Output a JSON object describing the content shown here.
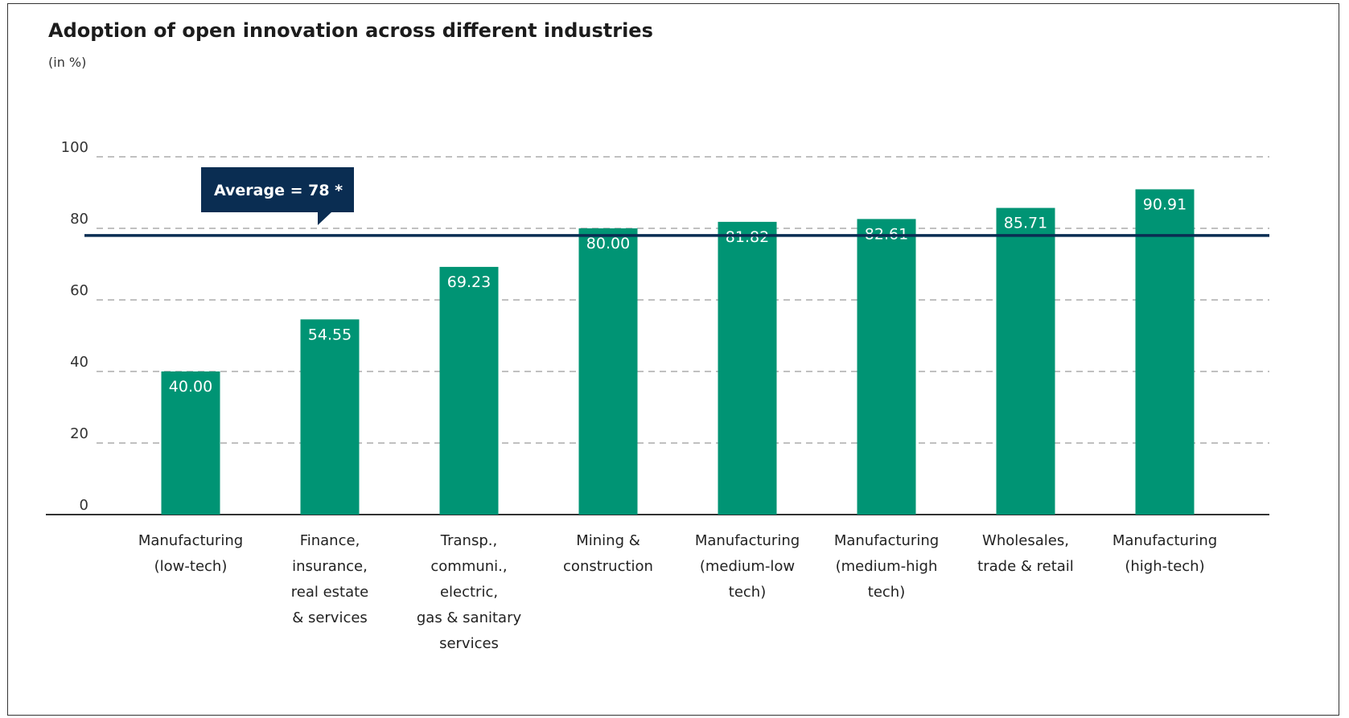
{
  "chart_data": {
    "type": "bar",
    "title": "Adoption of open innovation across different industries",
    "subtitle": "(in %)",
    "ylim": [
      0,
      100
    ],
    "yticks": [
      0,
      20,
      40,
      60,
      80,
      100
    ],
    "grid": true,
    "categories": [
      [
        "Manufacturing",
        "(low-tech)"
      ],
      [
        "Finance,",
        "insurance,",
        "real estate",
        "& services"
      ],
      [
        "Transp.,",
        "communi.,",
        "electric,",
        "gas & sanitary",
        "services"
      ],
      [
        "Mining &",
        "construction"
      ],
      [
        "Manufacturing",
        "(medium-low",
        "tech)"
      ],
      [
        "Manufacturing",
        "(medium-high",
        "tech)"
      ],
      [
        "Wholesales,",
        "trade & retail"
      ],
      [
        "Manufacturing",
        "(high-tech)"
      ]
    ],
    "values": [
      40.0,
      54.55,
      69.23,
      80.0,
      81.82,
      82.61,
      85.71,
      90.91
    ],
    "value_labels": [
      "40.00",
      "54.55",
      "69.23",
      "80.00",
      "81.82",
      "82.61",
      "85.71",
      "90.91"
    ],
    "average": {
      "value": 78,
      "label": "Average = 78 *"
    },
    "colors": {
      "bar": "#009474",
      "average": "#0a2d52",
      "axis": "#333333"
    }
  }
}
